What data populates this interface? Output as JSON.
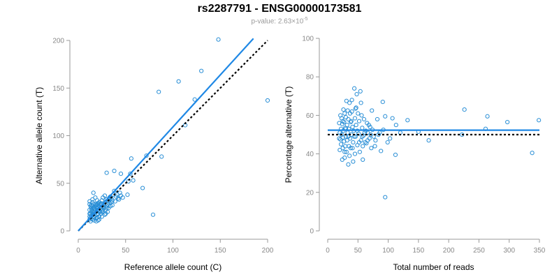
{
  "header": {
    "title": "rs2287791 - ENSG00000173581",
    "subtitle_prefix": "p-value: 2.63×10",
    "subtitle_exponent": "-5"
  },
  "colors": {
    "points": "#2a8fd6",
    "fit_line": "#1f88e5",
    "reference_line": "#000000",
    "axis": "#999999",
    "tick_label": "#888888"
  },
  "chart_data": [
    {
      "type": "scatter",
      "xlabel": "Reference allele count (C)",
      "ylabel": "Alternative allele count (T)",
      "xlim": [
        0,
        200
      ],
      "ylim": [
        0,
        200
      ],
      "xticks": [
        0,
        50,
        100,
        150,
        200
      ],
      "yticks": [
        0,
        50,
        100,
        150,
        200
      ],
      "fit_line": {
        "x": [
          0,
          185
        ],
        "y": [
          0,
          202
        ]
      },
      "reference_line": {
        "x": [
          0,
          200
        ],
        "y": [
          0,
          200
        ]
      },
      "points": [
        [
          148,
          201
        ],
        [
          130,
          168
        ],
        [
          106,
          157
        ],
        [
          200,
          137
        ],
        [
          123,
          138
        ],
        [
          85,
          146
        ],
        [
          113,
          111
        ],
        [
          72,
          79
        ],
        [
          88,
          78
        ],
        [
          56,
          76
        ],
        [
          68,
          45
        ],
        [
          79,
          17
        ],
        [
          53,
          52
        ],
        [
          58,
          53
        ],
        [
          55,
          60
        ],
        [
          45,
          60
        ],
        [
          38,
          63
        ],
        [
          30,
          61
        ],
        [
          38,
          42
        ],
        [
          45,
          37
        ],
        [
          52,
          38
        ],
        [
          43,
          33
        ],
        [
          40,
          36
        ],
        [
          37,
          38
        ],
        [
          33,
          35
        ],
        [
          35,
          34
        ],
        [
          30,
          33
        ],
        [
          28,
          30
        ],
        [
          25,
          28
        ],
        [
          27,
          25
        ],
        [
          24,
          27
        ],
        [
          22,
          30
        ],
        [
          20,
          24
        ],
        [
          21,
          22
        ],
        [
          23,
          20
        ],
        [
          26,
          22
        ],
        [
          24,
          18
        ],
        [
          22,
          15
        ],
        [
          20,
          17
        ],
        [
          19,
          20
        ],
        [
          18,
          22
        ],
        [
          17,
          25
        ],
        [
          16,
          28
        ],
        [
          15,
          30
        ],
        [
          15,
          33
        ],
        [
          16,
          40
        ],
        [
          18,
          35
        ],
        [
          20,
          32
        ],
        [
          21,
          29
        ],
        [
          19,
          27
        ],
        [
          18,
          26
        ],
        [
          17,
          23
        ],
        [
          16,
          20
        ],
        [
          15,
          18
        ],
        [
          14,
          16
        ],
        [
          13,
          14
        ],
        [
          12,
          12
        ],
        [
          12,
          15
        ],
        [
          13,
          18
        ],
        [
          14,
          20
        ],
        [
          14,
          24
        ],
        [
          13,
          26
        ],
        [
          12,
          22
        ],
        [
          12,
          28
        ],
        [
          12,
          31
        ],
        [
          14,
          27
        ],
        [
          16,
          17
        ],
        [
          17,
          14
        ],
        [
          18,
          16
        ],
        [
          19,
          13
        ],
        [
          20,
          14
        ],
        [
          22,
          12
        ],
        [
          21,
          18
        ],
        [
          25,
          15
        ],
        [
          26,
          20
        ],
        [
          28,
          17
        ],
        [
          27,
          24
        ],
        [
          29,
          22
        ],
        [
          30,
          26
        ],
        [
          31,
          28
        ],
        [
          32,
          31
        ],
        [
          33,
          29
        ],
        [
          34,
          26
        ],
        [
          35,
          30
        ],
        [
          36,
          27
        ],
        [
          39,
          31
        ],
        [
          41,
          38
        ],
        [
          44,
          40
        ],
        [
          47,
          35
        ],
        [
          31,
          20
        ],
        [
          29,
          18
        ],
        [
          24,
          23
        ],
        [
          23,
          25
        ],
        [
          25,
          32
        ],
        [
          26,
          35
        ],
        [
          28,
          37
        ],
        [
          13,
          10
        ],
        [
          15,
          12
        ],
        [
          17,
          11
        ],
        [
          19,
          10
        ],
        [
          21,
          11
        ],
        [
          14,
          22
        ],
        [
          16,
          24
        ],
        [
          18,
          28
        ],
        [
          20,
          28
        ],
        [
          22,
          26
        ],
        [
          24,
          29
        ],
        [
          26,
          26
        ],
        [
          30,
          24
        ],
        [
          27,
          27
        ],
        [
          33,
          33
        ],
        [
          36,
          32
        ],
        [
          42,
          34
        ],
        [
          32,
          24
        ],
        [
          34,
          36
        ],
        [
          23,
          28
        ],
        [
          25,
          20
        ],
        [
          12,
          18
        ],
        [
          15,
          26
        ],
        [
          17,
          19
        ],
        [
          20,
          22
        ]
      ]
    },
    {
      "type": "scatter",
      "xlabel": "Total number of reads",
      "ylabel": "Percentage alternative (T)",
      "xlim": [
        0,
        350
      ],
      "ylim": [
        0,
        100
      ],
      "xticks": [
        0,
        50,
        100,
        150,
        200,
        250,
        300,
        350
      ],
      "yticks": [
        0,
        20,
        40,
        60,
        80,
        100
      ],
      "fit_line": {
        "x": [
          0,
          350
        ],
        "y": [
          52.3,
          52.3
        ]
      },
      "reference_line": {
        "x": [
          0,
          350
        ],
        "y": [
          50,
          50
        ]
      },
      "points": [
        [
          349,
          57.5
        ],
        [
          338,
          40.5
        ],
        [
          297,
          56.5
        ],
        [
          264,
          59.5
        ],
        [
          261,
          53
        ],
        [
          226,
          63
        ],
        [
          222,
          50
        ],
        [
          167,
          47
        ],
        [
          150,
          51.5
        ],
        [
          132,
          57.5
        ],
        [
          113,
          55
        ],
        [
          112,
          39.5
        ],
        [
          107,
          58.5
        ],
        [
          95,
          17.5
        ],
        [
          95,
          59.5
        ],
        [
          91,
          67
        ],
        [
          92,
          52.5
        ],
        [
          88,
          41.5
        ],
        [
          79,
          47
        ],
        [
          73,
          62.5
        ],
        [
          72,
          43
        ],
        [
          74,
          52.5
        ],
        [
          70,
          54
        ],
        [
          69,
          48
        ],
        [
          66,
          51
        ],
        [
          65,
          56
        ],
        [
          64,
          45.5
        ],
        [
          60,
          58
        ],
        [
          59,
          49.5
        ],
        [
          58,
          44
        ],
        [
          57,
          53.5
        ],
        [
          56,
          60
        ],
        [
          55,
          47
        ],
        [
          55,
          66.5
        ],
        [
          54,
          72.5
        ],
        [
          52,
          57
        ],
        [
          51,
          50.5
        ],
        [
          50,
          61
        ],
        [
          49,
          44.5
        ],
        [
          48,
          71
        ],
        [
          47,
          55
        ],
        [
          46,
          49
        ],
        [
          46,
          63.5
        ],
        [
          45,
          58.5
        ],
        [
          44,
          74
        ],
        [
          43,
          52
        ],
        [
          42,
          46
        ],
        [
          41,
          54
        ],
        [
          40,
          62
        ],
        [
          40,
          68
        ],
        [
          39,
          50
        ],
        [
          38,
          43
        ],
        [
          38,
          56.5
        ],
        [
          37,
          48
        ],
        [
          37,
          61
        ],
        [
          36,
          66.5
        ],
        [
          35,
          53
        ],
        [
          35,
          44
        ],
        [
          34,
          58
        ],
        [
          34,
          34.5
        ],
        [
          33,
          51
        ],
        [
          33,
          62.5
        ],
        [
          32,
          47
        ],
        [
          32,
          55
        ],
        [
          31,
          41
        ],
        [
          31,
          67.5
        ],
        [
          30,
          59
        ],
        [
          30,
          49
        ],
        [
          29,
          53.5
        ],
        [
          29,
          44
        ],
        [
          28,
          61
        ],
        [
          28,
          38
        ],
        [
          27,
          56.5
        ],
        [
          27,
          46.5
        ],
        [
          26,
          52
        ],
        [
          26,
          63
        ],
        [
          25,
          48.5
        ],
        [
          25,
          43
        ],
        [
          24,
          55.5
        ],
        [
          24,
          37
        ],
        [
          23,
          58.5
        ],
        [
          23,
          50
        ],
        [
          22,
          45
        ],
        [
          22,
          53
        ],
        [
          21,
          47.5
        ],
        [
          21,
          60
        ],
        [
          20,
          51
        ],
        [
          20,
          42
        ],
        [
          19,
          56
        ],
        [
          19,
          48
        ],
        [
          42,
          36
        ],
        [
          45,
          40
        ],
        [
          53,
          41
        ],
        [
          58,
          37
        ],
        [
          62,
          46
        ],
        [
          68,
          55
        ],
        [
          76,
          49
        ],
        [
          84,
          50
        ],
        [
          99,
          46
        ],
        [
          103,
          48
        ],
        [
          120,
          51
        ],
        [
          36,
          39
        ],
        [
          39,
          57
        ],
        [
          47,
          64
        ],
        [
          52,
          46
        ],
        [
          44,
          49
        ],
        [
          49,
          52
        ],
        [
          57,
          49
        ],
        [
          63,
          52
        ],
        [
          71,
          50
        ],
        [
          82,
          58
        ],
        [
          30,
          53
        ],
        [
          28,
          41
        ],
        [
          25,
          57
        ],
        [
          34,
          49
        ],
        [
          41,
          43
        ],
        [
          61,
          51
        ],
        [
          66,
          47
        ],
        [
          78,
          44
        ],
        [
          86,
          51
        ]
      ]
    }
  ]
}
